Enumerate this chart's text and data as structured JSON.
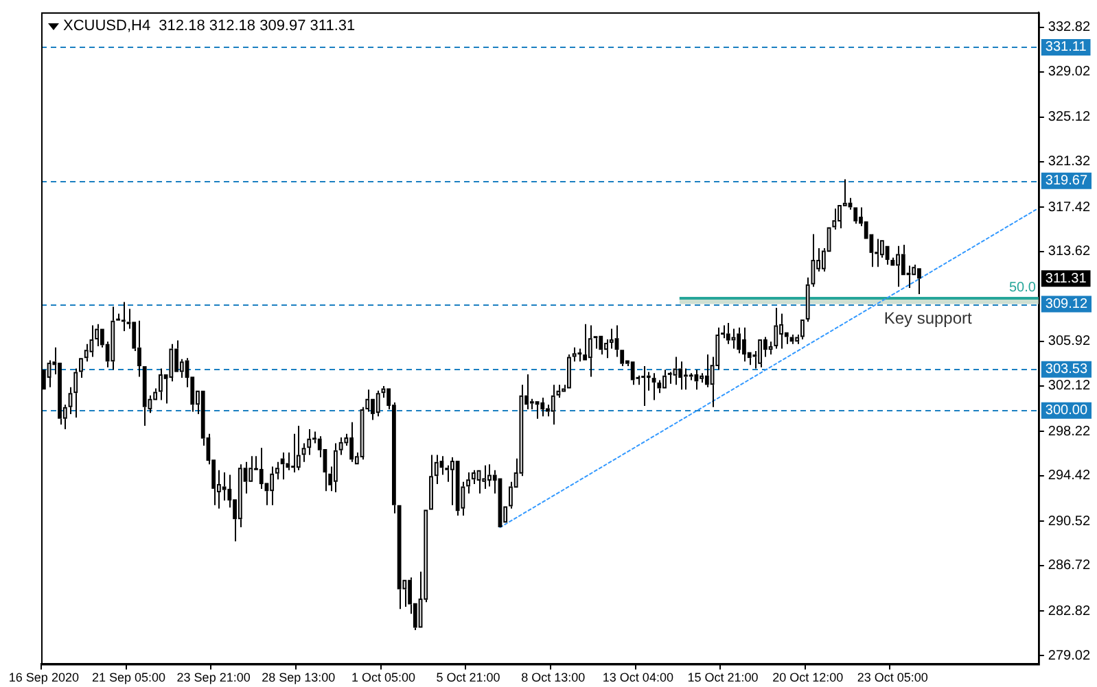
{
  "chart_data": {
    "type": "candlestick",
    "title": "XCUUSD,H4  312.18 312.18 309.97 311.31",
    "categories": [
      "16 Sep 2020",
      null,
      null,
      null,
      null,
      null,
      null,
      null,
      null,
      null,
      null,
      null,
      null,
      null,
      null,
      null,
      "21 Sep 05:00",
      null,
      null,
      null,
      null,
      null,
      null,
      null,
      null,
      null,
      null,
      null,
      null,
      null,
      null,
      null,
      "23 Sep 21:00",
      null,
      null,
      null,
      null,
      null,
      null,
      null,
      null,
      null,
      null,
      null,
      null,
      null,
      null,
      null,
      "28 Sep 13:00",
      null,
      null,
      null,
      null,
      null,
      null,
      null,
      null,
      null,
      null,
      null,
      null,
      null,
      null,
      null,
      "1 Oct 05:00",
      null,
      null,
      null,
      null,
      null,
      null,
      null,
      null,
      null,
      null,
      null,
      null,
      null,
      null,
      null,
      "5 Oct 21:00",
      null,
      null,
      null,
      null,
      null,
      null,
      null,
      null,
      null,
      null,
      null,
      null,
      null,
      null,
      null,
      "8 Oct 13:00",
      null,
      null,
      null,
      null,
      null,
      null,
      null,
      null,
      null,
      null,
      null,
      null,
      null,
      null,
      null,
      "13 Oct 04:00",
      null,
      null,
      null,
      null,
      null,
      null,
      null,
      null,
      null,
      null,
      null,
      null,
      null,
      null,
      null,
      "15 Oct 21:00",
      null,
      null,
      null,
      null,
      null,
      null,
      null,
      null,
      null,
      null,
      null,
      null,
      null,
      null,
      null,
      "20 Oct 12:00",
      null,
      null,
      null,
      null,
      null,
      null,
      null,
      null,
      null,
      null,
      null,
      null,
      null,
      null,
      null,
      "23 Oct 05:00",
      null,
      null,
      null,
      null,
      null,
      null,
      null,
      null,
      null,
      null,
      null,
      null,
      null,
      null,
      null,
      null,
      null,
      null,
      null,
      null,
      null,
      null,
      null,
      null,
      null,
      null,
      null
    ],
    "ohlc": [
      [
        303.5,
        303.6,
        301.8,
        301.8
      ],
      [
        302.8,
        304.3,
        302.0,
        304.1
      ],
      [
        304.2,
        305.4,
        303.1,
        303.9
      ],
      [
        304.1,
        304.1,
        298.8,
        299.3
      ],
      [
        299.3,
        300.5,
        298.4,
        300.3
      ],
      [
        300.3,
        302.0,
        299.7,
        301.5
      ],
      [
        301.5,
        303.6,
        299.4,
        303.3
      ],
      [
        303.3,
        304.6,
        302.8,
        304.5
      ],
      [
        304.5,
        305.7,
        304.2,
        305.2
      ],
      [
        305.0,
        307.3,
        304.6,
        306.1
      ],
      [
        306.1,
        307.4,
        305.5,
        307.0
      ],
      [
        307.0,
        307.1,
        305.4,
        305.6
      ],
      [
        305.7,
        305.9,
        303.7,
        304.2
      ],
      [
        304.2,
        308.9,
        303.5,
        307.7
      ],
      [
        307.8,
        308.3,
        307.6,
        307.7
      ],
      [
        307.7,
        309.3,
        306.8,
        307.6
      ],
      [
        307.6,
        308.7,
        307.0,
        307.4
      ],
      [
        307.6,
        307.7,
        305.1,
        305.3
      ],
      [
        305.4,
        307.7,
        302.9,
        303.8
      ],
      [
        303.8,
        303.9,
        298.7,
        300.3
      ],
      [
        300.1,
        301.3,
        299.8,
        301.0
      ],
      [
        300.9,
        301.9,
        300.8,
        301.6
      ],
      [
        301.6,
        303.6,
        300.9,
        303.1
      ],
      [
        303.1,
        303.1,
        300.6,
        302.7
      ],
      [
        302.8,
        305.7,
        302.5,
        305.3
      ],
      [
        305.3,
        306.0,
        303.2,
        303.3
      ],
      [
        303.3,
        304.4,
        302.8,
        304.2
      ],
      [
        304.3,
        304.5,
        302.0,
        302.8
      ],
      [
        302.9,
        303.0,
        299.9,
        300.5
      ],
      [
        300.5,
        301.8,
        299.7,
        301.7
      ],
      [
        301.7,
        301.8,
        297.0,
        297.6
      ],
      [
        297.7,
        298.0,
        295.4,
        295.7
      ],
      [
        295.8,
        295.8,
        291.9,
        293.3
      ],
      [
        293.0,
        294.9,
        291.6,
        293.7
      ],
      [
        293.5,
        294.7,
        292.3,
        293.2
      ],
      [
        293.3,
        294.5,
        291.7,
        292.3
      ],
      [
        292.4,
        292.5,
        288.8,
        290.7
      ],
      [
        290.7,
        295.4,
        290.0,
        295.1
      ],
      [
        295.1,
        295.6,
        292.9,
        293.9
      ],
      [
        293.9,
        296.1,
        293.9,
        295.1
      ],
      [
        295.0,
        296.1,
        294.8,
        294.9
      ],
      [
        295.0,
        296.8,
        293.3,
        293.7
      ],
      [
        293.8,
        293.9,
        291.9,
        293.1
      ],
      [
        293.1,
        295.2,
        291.9,
        294.6
      ],
      [
        294.6,
        295.6,
        294.1,
        295.1
      ],
      [
        295.9,
        296.4,
        294.1,
        295.4
      ],
      [
        295.5,
        296.4,
        294.9,
        295.1
      ],
      [
        295.2,
        298.0,
        294.7,
        295.1
      ],
      [
        295.1,
        298.7,
        294.9,
        296.2
      ],
      [
        296.2,
        297.2,
        295.6,
        296.8
      ],
      [
        296.8,
        298.4,
        296.2,
        297.6
      ],
      [
        297.5,
        298.2,
        297.2,
        297.6
      ],
      [
        297.6,
        297.8,
        296.0,
        296.6
      ],
      [
        296.7,
        296.8,
        293.1,
        294.7
      ],
      [
        294.6,
        295.2,
        293.1,
        293.6
      ],
      [
        293.9,
        297.2,
        293.0,
        296.6
      ],
      [
        296.6,
        297.7,
        296.2,
        297.3
      ],
      [
        297.2,
        298.0,
        297.0,
        297.7
      ],
      [
        297.7,
        299.0,
        295.6,
        295.8
      ],
      [
        295.4,
        296.4,
        295.3,
        296.1
      ],
      [
        296.0,
        300.3,
        295.8,
        300.1
      ],
      [
        300.1,
        301.8,
        299.9,
        301.0
      ],
      [
        301.0,
        301.1,
        299.2,
        299.7
      ],
      [
        299.8,
        301.7,
        299.5,
        301.5
      ],
      [
        301.5,
        302.1,
        301.1,
        301.9
      ],
      [
        301.9,
        302.0,
        300.1,
        300.4
      ],
      [
        300.5,
        300.7,
        291.2,
        291.9
      ],
      [
        291.9,
        291.9,
        283.0,
        284.7
      ],
      [
        284.7,
        285.6,
        283.2,
        285.5
      ],
      [
        285.5,
        285.7,
        282.6,
        283.4
      ],
      [
        283.5,
        283.6,
        281.2,
        281.4
      ],
      [
        281.4,
        286.2,
        281.3,
        283.9
      ],
      [
        283.8,
        291.6,
        283.6,
        291.5
      ],
      [
        291.5,
        296.2,
        291.4,
        294.4
      ],
      [
        294.4,
        296.2,
        293.7,
        295.6
      ],
      [
        295.7,
        296.1,
        294.5,
        295.1
      ],
      [
        295.1,
        295.3,
        293.9,
        294.9
      ],
      [
        294.9,
        296.0,
        291.9,
        295.7
      ],
      [
        295.7,
        295.8,
        291.0,
        291.4
      ],
      [
        291.6,
        293.9,
        291.0,
        293.5
      ],
      [
        293.5,
        294.7,
        292.9,
        294.1
      ],
      [
        294.1,
        294.9,
        293.7,
        294.7
      ],
      [
        294.0,
        294.9,
        292.9,
        294.9
      ],
      [
        293.9,
        295.3,
        293.3,
        294.2
      ],
      [
        294.0,
        295.4,
        293.5,
        294.5
      ],
      [
        294.5,
        294.9,
        292.9,
        294.0
      ],
      [
        294.2,
        294.3,
        289.9,
        290.0
      ],
      [
        290.4,
        291.9,
        290.3,
        291.8
      ],
      [
        291.8,
        293.9,
        291.6,
        293.5
      ],
      [
        293.4,
        295.9,
        293.3,
        294.7
      ],
      [
        294.6,
        302.2,
        294.4,
        301.3
      ],
      [
        301.3,
        303.1,
        300.1,
        300.5
      ],
      [
        300.8,
        301.0,
        300.1,
        300.6
      ],
      [
        300.8,
        300.9,
        299.3,
        300.5
      ],
      [
        300.7,
        301.1,
        299.5,
        300.1
      ],
      [
        300.2,
        300.5,
        299.5,
        299.9
      ],
      [
        299.9,
        302.2,
        298.8,
        301.3
      ],
      [
        301.3,
        302.2,
        301.1,
        301.7
      ],
      [
        301.6,
        302.2,
        301.5,
        301.9
      ],
      [
        301.9,
        304.8,
        301.8,
        304.6
      ],
      [
        304.6,
        305.4,
        304.2,
        304.9
      ],
      [
        304.8,
        305.3,
        304.2,
        304.9
      ],
      [
        304.8,
        307.4,
        304.2,
        304.3
      ],
      [
        304.5,
        307.3,
        302.9,
        306.2
      ],
      [
        306.2,
        306.4,
        305.3,
        306.3
      ],
      [
        306.4,
        306.5,
        304.8,
        305.2
      ],
      [
        305.2,
        306.1,
        304.5,
        305.8
      ],
      [
        305.8,
        307.0,
        305.3,
        306.1
      ],
      [
        306.2,
        307.3,
        304.6,
        305.2
      ],
      [
        305.2,
        305.3,
        303.8,
        304.0
      ],
      [
        304.3,
        304.4,
        303.8,
        304.0
      ],
      [
        304.2,
        304.3,
        302.2,
        302.6
      ],
      [
        302.8,
        303.0,
        302.2,
        302.7
      ],
      [
        302.8,
        303.8,
        300.4,
        302.9
      ],
      [
        302.8,
        303.3,
        301.7,
        303.0
      ],
      [
        302.8,
        303.2,
        300.9,
        302.4
      ],
      [
        302.4,
        302.6,
        301.5,
        301.9
      ],
      [
        301.9,
        303.5,
        301.8,
        303.0
      ],
      [
        303.05,
        303.3,
        302.3,
        303.15
      ],
      [
        303.0,
        304.6,
        302.2,
        303.6
      ],
      [
        303.6,
        304.2,
        301.8,
        302.8
      ],
      [
        303.0,
        303.6,
        301.8,
        302.9
      ],
      [
        302.9,
        303.2,
        302.6,
        303.0
      ],
      [
        303.1,
        303.5,
        301.8,
        302.5
      ],
      [
        302.7,
        303.2,
        302.4,
        303.0
      ],
      [
        303.0,
        304.8,
        302.0,
        302.2
      ],
      [
        302.2,
        304.6,
        300.3,
        303.9
      ],
      [
        303.8,
        307.1,
        303.5,
        306.5
      ],
      [
        306.5,
        307.3,
        306.2,
        306.6
      ],
      [
        306.6,
        307.5,
        305.7,
        306.0
      ],
      [
        306.0,
        307.0,
        305.3,
        306.3
      ],
      [
        306.6,
        307.1,
        304.9,
        305.2
      ],
      [
        306.1,
        307.1,
        304.2,
        304.8
      ],
      [
        305.0,
        305.0,
        303.9,
        304.5
      ],
      [
        304.8,
        305.1,
        303.6,
        304.6
      ],
      [
        304.0,
        306.2,
        303.7,
        306.1
      ],
      [
        306.1,
        306.3,
        304.6,
        305.2
      ],
      [
        305.2,
        305.9,
        304.8,
        305.5
      ],
      [
        305.5,
        308.8,
        305.3,
        307.3
      ],
      [
        306.5,
        308.3,
        305.3,
        307.4
      ],
      [
        306.7,
        306.8,
        305.7,
        306.3
      ],
      [
        306.3,
        306.5,
        305.7,
        305.9
      ],
      [
        305.9,
        306.5,
        305.7,
        306.3
      ],
      [
        306.3,
        307.9,
        306.1,
        307.8
      ],
      [
        307.8,
        311.4,
        307.6,
        310.8
      ],
      [
        310.8,
        315.1,
        310.6,
        312.9
      ],
      [
        312.1,
        313.9,
        311.9,
        312.9
      ],
      [
        312.1,
        313.9,
        311.9,
        313.7
      ],
      [
        313.6,
        315.8,
        313.5,
        315.7
      ],
      [
        315.7,
        317.3,
        315.5,
        316.3
      ],
      [
        316.2,
        317.7,
        315.6,
        317.6
      ],
      [
        317.5,
        319.8,
        317.4,
        317.8
      ],
      [
        317.8,
        318.2,
        317.2,
        317.4
      ],
      [
        317.4,
        317.5,
        316.0,
        316.2
      ],
      [
        316.6,
        317.4,
        315.8,
        316.0
      ],
      [
        316.2,
        316.3,
        314.6,
        314.7
      ],
      [
        315.1,
        315.1,
        312.3,
        313.5
      ],
      [
        313.6,
        314.7,
        312.3,
        313.4
      ],
      [
        313.3,
        314.7,
        313.1,
        314.6
      ],
      [
        314.1,
        314.2,
        312.5,
        312.9
      ],
      [
        312.9,
        313.1,
        312.3,
        312.4
      ],
      [
        312.4,
        314.1,
        310.6,
        313.4
      ],
      [
        313.4,
        314.2,
        311.5,
        311.6
      ],
      [
        311.8,
        312.4,
        310.5,
        311.6
      ],
      [
        311.6,
        312.5,
        311.6,
        312.3
      ],
      [
        312.18,
        312.18,
        309.97,
        311.31
      ],
      null,
      null,
      null,
      null,
      null,
      null,
      null,
      null,
      null,
      null,
      null,
      null,
      null,
      null,
      null,
      null,
      null,
      null,
      null,
      null,
      null,
      null
    ],
    "series": [
      {
        "type": "line",
        "color": "#3399ff",
        "line_style": "dotted",
        "values": [
          null,
          null,
          null,
          null,
          null,
          null,
          null,
          null,
          null,
          null,
          null,
          null,
          null,
          null,
          null,
          null,
          null,
          null,
          null,
          null,
          null,
          null,
          null,
          null,
          null,
          null,
          null,
          null,
          null,
          null,
          null,
          null,
          null,
          null,
          null,
          null,
          null,
          null,
          null,
          null,
          null,
          null,
          null,
          null,
          null,
          null,
          null,
          null,
          null,
          null,
          null,
          null,
          null,
          null,
          null,
          null,
          null,
          null,
          null,
          null,
          null,
          null,
          null,
          null,
          null,
          null,
          null,
          null,
          null,
          null,
          null,
          null,
          null,
          null,
          null,
          null,
          null,
          null,
          null,
          null,
          null,
          null,
          null,
          null,
          null,
          null,
          290.0,
          null,
          null,
          null,
          null,
          null,
          null,
          null,
          null,
          null,
          null,
          null,
          null,
          null,
          null,
          null,
          null,
          null,
          null,
          null,
          null,
          null,
          null,
          null,
          null,
          null,
          null,
          null,
          null,
          null,
          null,
          null,
          null,
          null,
          null,
          null,
          null,
          null,
          null,
          null,
          null,
          null,
          null,
          null,
          null,
          null,
          null,
          null,
          null,
          null,
          null,
          null,
          null,
          null,
          null,
          null,
          null,
          null,
          null,
          null,
          null,
          null,
          null,
          null,
          null,
          null,
          null,
          null,
          null,
          null,
          null,
          null,
          null,
          null,
          null,
          null,
          null,
          null,
          null,
          null,
          null,
          null,
          null,
          null,
          null,
          null,
          null,
          null,
          null,
          null,
          null,
          null,
          null,
          null,
          null,
          null,
          null,
          null,
          null,
          null,
          null,
          317.2
        ]
      }
    ],
    "ylim": [
      278.3,
      334.1
    ],
    "yticks": [
      279.02,
      282.82,
      286.72,
      290.52,
      294.42,
      298.22,
      302.12,
      305.92,
      313.62,
      317.42,
      321.32,
      325.12,
      329.02,
      332.82
    ],
    "ref_lines": [
      {
        "axis": "y",
        "value": 331.11,
        "label": "331.11",
        "color": "#1a7fc1",
        "line_style": "dashed"
      },
      {
        "axis": "y",
        "value": 319.67,
        "label": "319.67",
        "color": "#1a7fc1",
        "line_style": "dashed"
      },
      {
        "axis": "y",
        "value": 309.12,
        "label": "309.12",
        "color": "#1a7fc1",
        "line_style": "dashed"
      },
      {
        "axis": "y",
        "value": 303.53,
        "label": "303.53",
        "color": "#1a7fc1",
        "line_style": "dashed"
      },
      {
        "axis": "y",
        "value": 300.0,
        "label": "300.00",
        "color": "#1a7fc1",
        "line_style": "dashed"
      },
      {
        "axis": "y",
        "value": 309.72,
        "color": "#26a69a",
        "line_style": "solid"
      }
    ],
    "bands": [
      {
        "axis": "y",
        "from": 309.12,
        "to": 309.72,
        "label": "Key support",
        "color": "#cfe0d2"
      }
    ],
    "annotations": [
      "50.0",
      {
        "text": "311.31",
        "y": 311.31
      }
    ],
    "grid": false,
    "legend": false
  }
}
